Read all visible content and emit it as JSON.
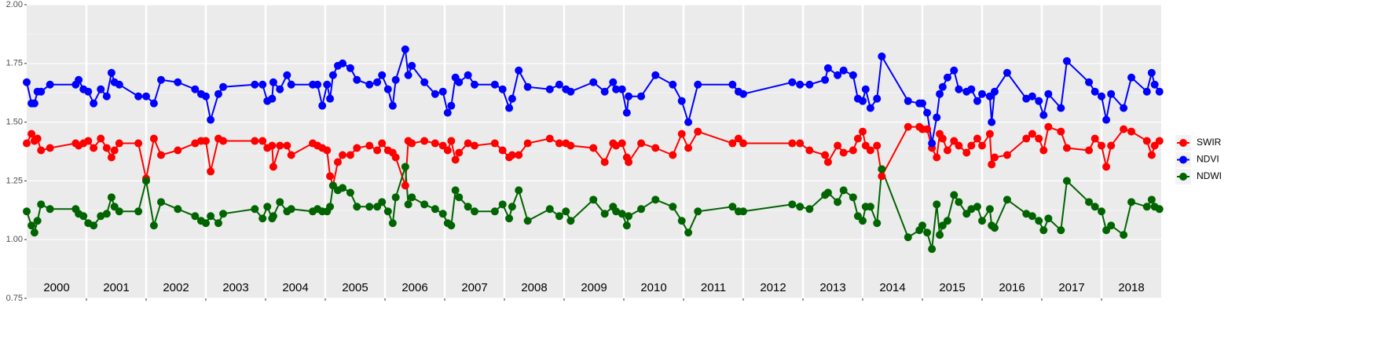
{
  "chart_data": {
    "type": "line",
    "xlim": [
      2000,
      2019
    ],
    "xticks": [
      2001,
      2002,
      2003,
      2004,
      2005,
      2006,
      2007,
      2008,
      2009,
      2010,
      2011,
      2012,
      2013,
      2014,
      2015,
      2016,
      2017,
      2018
    ],
    "ylim": [
      0.75,
      2
    ],
    "yticks": [
      {
        "value": 0.75,
        "label": "0.75"
      },
      {
        "value": 1,
        "label": "1.00"
      },
      1.25,
      {
        "value": 1.5,
        "label": "1.50"
      },
      1.75,
      {
        "value": 2,
        "label": "2.00"
      }
    ],
    "grid": true,
    "legend": "right",
    "year_labels": [
      "2000",
      "2001",
      "2002",
      "2003",
      "2004",
      "2005",
      "2006",
      "2007",
      "2008",
      "2009",
      "2010",
      "2011",
      "2012",
      "2013",
      "2014",
      "2015",
      "2016",
      "2017",
      "2018"
    ],
    "x": [
      2000.0,
      2000.08,
      2000.13,
      2000.18,
      2000.24,
      2000.39,
      2000.82,
      2000.87,
      2000.95,
      2001.03,
      2001.12,
      2001.24,
      2001.34,
      2001.42,
      2001.47,
      2001.55,
      2001.87,
      2002.0,
      2002.13,
      2002.25,
      2002.53,
      2002.82,
      2002.92,
      2003.0,
      2003.08,
      2003.21,
      2003.29,
      2003.82,
      2003.95,
      2004.03,
      2004.11,
      2004.13,
      2004.24,
      2004.36,
      2004.43,
      2004.79,
      2004.87,
      2004.95,
      2005.03,
      2005.08,
      2005.13,
      2005.21,
      2005.29,
      2005.42,
      2005.53,
      2005.74,
      2005.87,
      2005.95,
      2006.05,
      2006.13,
      2006.18,
      2006.34,
      2006.39,
      2006.45,
      2006.66,
      2006.84,
      2006.97,
      2007.05,
      2007.11,
      2007.18,
      2007.24,
      2007.39,
      2007.5,
      2007.84,
      2007.97,
      2008.08,
      2008.13,
      2008.24,
      2008.39,
      2008.76,
      2008.92,
      2009.03,
      2009.11,
      2009.49,
      2009.68,
      2009.82,
      2009.87,
      2009.97,
      2010.05,
      2010.08,
      2010.29,
      2010.53,
      2010.82,
      2010.97,
      2011.08,
      2011.24,
      2011.82,
      2011.92,
      2012.0,
      2012.82,
      2012.95,
      2013.11,
      2013.37,
      2013.42,
      2013.58,
      2013.68,
      2013.84,
      2013.92,
      2014.0,
      2014.05,
      2014.13,
      2014.24,
      2014.32,
      2014.76,
      2014.95,
      2015.0,
      2015.08,
      2015.16,
      2015.24,
      2015.29,
      2015.34,
      2015.42,
      2015.53,
      2015.61,
      2015.74,
      2015.82,
      2015.92,
      2016.0,
      2016.13,
      2016.16,
      2016.21,
      2016.42,
      2016.74,
      2016.84,
      2016.95,
      2017.03,
      2017.11,
      2017.32,
      2017.42,
      2017.79,
      2017.89,
      2018.0,
      2018.08,
      2018.16,
      2018.37,
      2018.5,
      2018.76,
      2018.84,
      2018.89,
      2018.97
    ],
    "series": [
      {
        "name": "SWIR",
        "color": "#ff0000",
        "values": [
          1.41,
          1.45,
          1.42,
          1.43,
          1.38,
          1.39,
          1.41,
          1.4,
          1.41,
          1.42,
          1.39,
          1.43,
          1.39,
          1.35,
          1.38,
          1.41,
          1.41,
          1.26,
          1.43,
          1.36,
          1.38,
          1.41,
          1.42,
          1.42,
          1.29,
          1.43,
          1.42,
          1.42,
          1.42,
          1.39,
          1.4,
          1.31,
          1.4,
          1.4,
          1.36,
          1.41,
          1.4,
          1.39,
          1.38,
          1.27,
          1.23,
          1.33,
          1.36,
          1.36,
          1.39,
          1.4,
          1.38,
          1.41,
          1.38,
          1.37,
          1.35,
          1.23,
          1.42,
          1.41,
          1.42,
          1.41,
          1.4,
          1.38,
          1.42,
          1.34,
          1.37,
          1.41,
          1.4,
          1.41,
          1.38,
          1.35,
          1.36,
          1.36,
          1.41,
          1.43,
          1.41,
          1.41,
          1.4,
          1.39,
          1.33,
          1.41,
          1.4,
          1.41,
          1.35,
          1.33,
          1.41,
          1.39,
          1.36,
          1.45,
          1.39,
          1.46,
          1.41,
          1.43,
          1.41,
          1.41,
          1.41,
          1.38,
          1.36,
          1.33,
          1.4,
          1.37,
          1.38,
          1.43,
          1.46,
          1.4,
          1.38,
          1.4,
          1.27,
          1.48,
          1.48,
          1.47,
          1.47,
          1.39,
          1.35,
          1.45,
          1.43,
          1.38,
          1.42,
          1.4,
          1.37,
          1.4,
          1.43,
          1.4,
          1.45,
          1.32,
          1.35,
          1.36,
          1.43,
          1.45,
          1.43,
          1.38,
          1.48,
          1.46,
          1.39,
          1.38,
          1.43,
          1.4,
          1.31,
          1.4,
          1.47,
          1.46,
          1.42,
          1.36,
          1.4,
          1.42
        ]
      },
      {
        "name": "NDVI",
        "color": "#0000ff",
        "values": [
          1.67,
          1.58,
          1.58,
          1.63,
          1.63,
          1.66,
          1.66,
          1.68,
          1.64,
          1.63,
          1.58,
          1.64,
          1.61,
          1.71,
          1.67,
          1.66,
          1.61,
          1.61,
          1.58,
          1.68,
          1.67,
          1.64,
          1.62,
          1.61,
          1.51,
          1.62,
          1.65,
          1.66,
          1.66,
          1.59,
          1.6,
          1.67,
          1.64,
          1.7,
          1.66,
          1.66,
          1.66,
          1.57,
          1.66,
          1.6,
          1.7,
          1.74,
          1.75,
          1.73,
          1.68,
          1.66,
          1.67,
          1.7,
          1.64,
          1.57,
          1.68,
          1.81,
          1.7,
          1.74,
          1.67,
          1.62,
          1.63,
          1.54,
          1.57,
          1.69,
          1.67,
          1.7,
          1.66,
          1.66,
          1.64,
          1.56,
          1.6,
          1.72,
          1.65,
          1.64,
          1.66,
          1.64,
          1.63,
          1.67,
          1.63,
          1.67,
          1.64,
          1.64,
          1.54,
          1.61,
          1.61,
          1.7,
          1.66,
          1.59,
          1.5,
          1.66,
          1.66,
          1.63,
          1.62,
          1.67,
          1.66,
          1.66,
          1.68,
          1.73,
          1.7,
          1.72,
          1.7,
          1.6,
          1.59,
          1.64,
          1.56,
          1.6,
          1.78,
          1.59,
          1.58,
          1.58,
          1.54,
          1.41,
          1.52,
          1.62,
          1.65,
          1.69,
          1.72,
          1.64,
          1.63,
          1.64,
          1.59,
          1.62,
          1.61,
          1.5,
          1.63,
          1.71,
          1.6,
          1.61,
          1.59,
          1.53,
          1.62,
          1.56,
          1.76,
          1.67,
          1.63,
          1.61,
          1.51,
          1.62,
          1.56,
          1.69,
          1.63,
          1.71,
          1.66,
          1.63
        ]
      },
      {
        "name": "NDWI",
        "color": "#006400",
        "values": [
          1.12,
          1.06,
          1.03,
          1.08,
          1.15,
          1.13,
          1.13,
          1.11,
          1.1,
          1.07,
          1.06,
          1.1,
          1.11,
          1.18,
          1.14,
          1.12,
          1.12,
          1.25,
          1.06,
          1.16,
          1.13,
          1.1,
          1.08,
          1.07,
          1.1,
          1.07,
          1.11,
          1.13,
          1.09,
          1.14,
          1.09,
          1.1,
          1.16,
          1.12,
          1.13,
          1.12,
          1.13,
          1.12,
          1.12,
          1.14,
          1.23,
          1.21,
          1.22,
          1.2,
          1.14,
          1.14,
          1.14,
          1.16,
          1.12,
          1.07,
          1.18,
          1.31,
          1.15,
          1.18,
          1.15,
          1.13,
          1.11,
          1.07,
          1.06,
          1.21,
          1.18,
          1.14,
          1.12,
          1.12,
          1.15,
          1.09,
          1.14,
          1.21,
          1.08,
          1.13,
          1.1,
          1.12,
          1.08,
          1.17,
          1.11,
          1.14,
          1.12,
          1.11,
          1.06,
          1.1,
          1.13,
          1.17,
          1.14,
          1.08,
          1.03,
          1.12,
          1.14,
          1.12,
          1.12,
          1.15,
          1.14,
          1.13,
          1.19,
          1.2,
          1.16,
          1.21,
          1.18,
          1.1,
          1.08,
          1.14,
          1.14,
          1.07,
          1.3,
          1.01,
          1.04,
          1.06,
          1.03,
          0.96,
          1.15,
          1.02,
          1.06,
          1.08,
          1.19,
          1.16,
          1.11,
          1.13,
          1.14,
          1.08,
          1.13,
          1.06,
          1.05,
          1.17,
          1.11,
          1.1,
          1.08,
          1.04,
          1.09,
          1.04,
          1.25,
          1.16,
          1.14,
          1.12,
          1.04,
          1.06,
          1.02,
          1.16,
          1.14,
          1.17,
          1.14,
          1.13
        ]
      }
    ]
  }
}
